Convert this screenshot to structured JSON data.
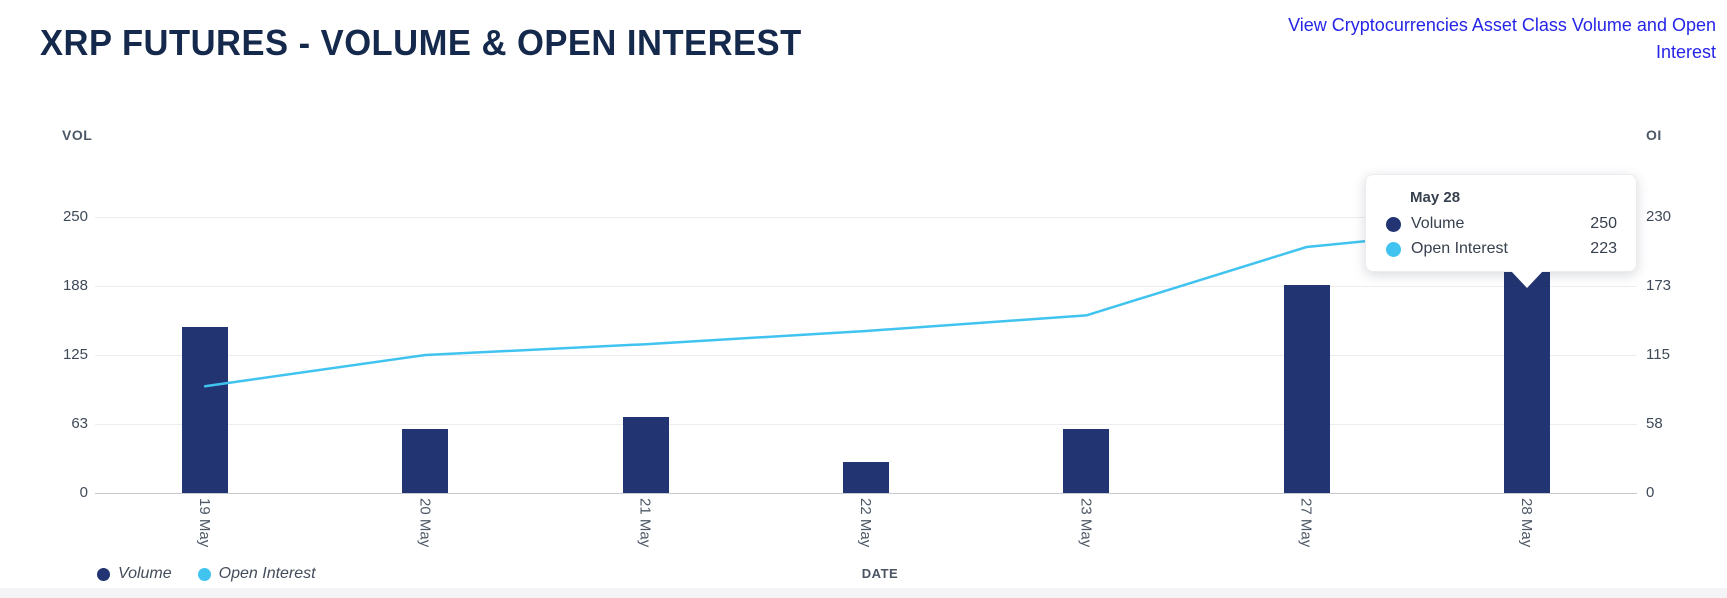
{
  "header": {
    "title": "XRP FUTURES - VOLUME & OPEN INTEREST",
    "link": "View Cryptocurrencies Asset Class Volume and Open Interest"
  },
  "colors": {
    "volume": "#223572",
    "open_interest": "#41c3f0",
    "title_text": "#14294b",
    "link_text": "#2525e8",
    "axis_text": "#4d5866"
  },
  "chart_data": {
    "type": "bar+line",
    "categories": [
      "19 May",
      "20 May",
      "21 May",
      "22 May",
      "23 May",
      "27 May",
      "28 May"
    ],
    "series": [
      {
        "name": "Volume",
        "type": "bar",
        "axis": "left",
        "color": "#223572",
        "values": [
          150,
          58,
          69,
          28,
          58,
          188,
          250
        ]
      },
      {
        "name": "Open Interest",
        "type": "line",
        "axis": "right",
        "color": "#41c3f0",
        "values": [
          89,
          115,
          124,
          135,
          148,
          205,
          223
        ]
      }
    ],
    "left_axis": {
      "label": "VOL",
      "ticks": [
        0,
        63,
        125,
        188,
        250
      ],
      "max": 250
    },
    "right_axis": {
      "label": "OI",
      "ticks": [
        0,
        58,
        115,
        173,
        230
      ],
      "max": 230
    },
    "xlabel": "DATE",
    "grid": true,
    "legend_position": "bottom-left",
    "legend": [
      {
        "label": "Volume",
        "color": "#223572"
      },
      {
        "label": "Open Interest",
        "color": "#41c3f0"
      }
    ]
  },
  "tooltip": {
    "title": "May 28",
    "rows": [
      {
        "label": "Volume",
        "value": "250",
        "color": "#223572"
      },
      {
        "label": "Open Interest",
        "value": "223",
        "color": "#41c3f0"
      }
    ]
  }
}
